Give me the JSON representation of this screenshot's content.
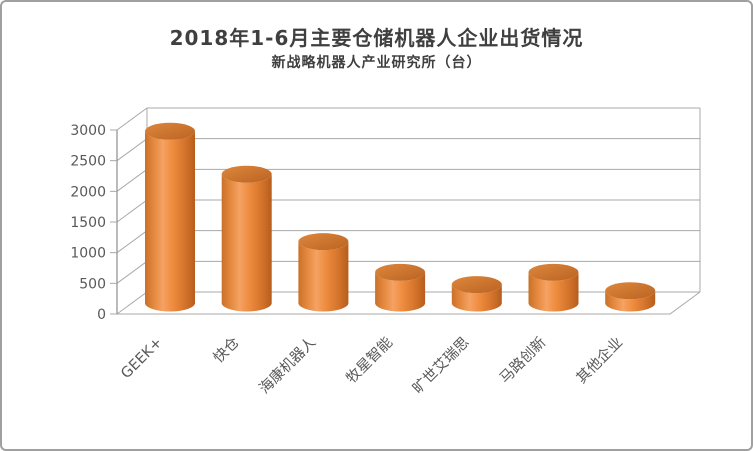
{
  "chart_data": {
    "type": "bar",
    "style": "3d-cylinder",
    "title": "2018年1-6月主要仓储机器人企业出货情况",
    "subtitle": "新战略机器人产业研究所（台）",
    "unit": "台",
    "categories": [
      "GEEK+",
      "快仓",
      "海康机器人",
      "牧星智能",
      "旷世艾瑞思",
      "马路创新",
      "其他企业"
    ],
    "values": [
      2800,
      2100,
      1000,
      500,
      300,
      500,
      200
    ],
    "ylim": [
      0,
      3000
    ],
    "ytick_step": 500,
    "yticks": [
      "0",
      "500",
      "1000",
      "1500",
      "2000",
      "2500",
      "3000"
    ],
    "xlabel": "",
    "ylabel": "",
    "grid": true,
    "legend": false
  },
  "colors": {
    "background": "#ffffff",
    "frame_border": "#a0a0a0",
    "title_text": "#3f3f3f",
    "axis_text": "#595959",
    "gridline": "#a8a8a8",
    "wall_edge": "#8e8e8e",
    "cylinder_edge_left": "#c9702a",
    "cylinder_body_light": "#f5a263",
    "cylinder_body_mid": "#ee8c3f",
    "cylinder_body_dark": "#b65d1d",
    "cylinder_top_light": "#dd873d",
    "cylinder_top_dark": "#bb6322"
  }
}
